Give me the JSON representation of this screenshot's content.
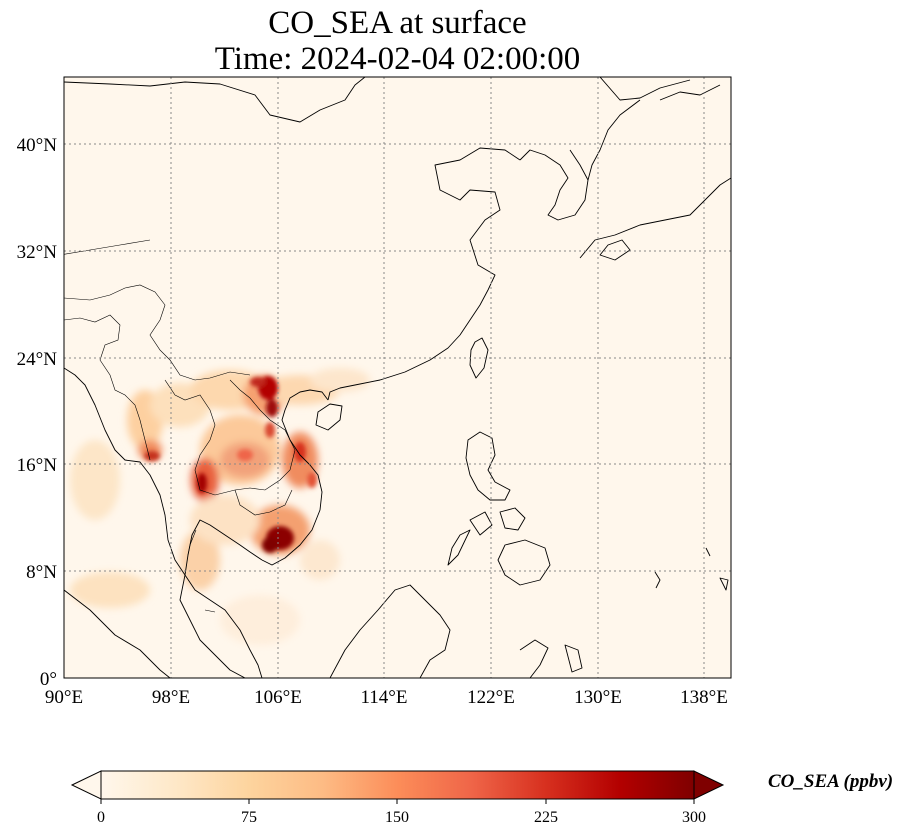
{
  "title": {
    "line1": "CO_SEA at surface",
    "line2": "Time: 2024-02-04 02:00:00"
  },
  "map": {
    "extent": {
      "lon": [
        90,
        140
      ],
      "lat": [
        0,
        45
      ]
    },
    "gridlines": "dotted gray",
    "lon_ticks": [
      {
        "value": 90,
        "label": "90°E"
      },
      {
        "value": 98,
        "label": "98°E"
      },
      {
        "value": 106,
        "label": "106°E"
      },
      {
        "value": 114,
        "label": "114°E"
      },
      {
        "value": 122,
        "label": "122°E"
      },
      {
        "value": 130,
        "label": "130°E"
      },
      {
        "value": 138,
        "label": "138°E"
      }
    ],
    "lat_ticks": [
      {
        "value": 0,
        "label": "0°"
      },
      {
        "value": 8,
        "label": "8°N"
      },
      {
        "value": 16,
        "label": "16°N"
      },
      {
        "value": 24,
        "label": "24°N"
      },
      {
        "value": 32,
        "label": "32°N"
      },
      {
        "value": 40,
        "label": "40°N"
      }
    ]
  },
  "colorbar": {
    "label": "CO_SEA (ppbv)",
    "colormap": "OrRd",
    "range": [
      0,
      300
    ],
    "extend": "both",
    "ticks": [
      "0",
      "75",
      "150",
      "225",
      "300"
    ],
    "tick_values": [
      0,
      75,
      150,
      225,
      300
    ],
    "colors": [
      "#fff7ec",
      "#fee8c8",
      "#fdd49e",
      "#fdbb84",
      "#fc8d59",
      "#ef6548",
      "#d7301f",
      "#b30000",
      "#7f0000"
    ]
  }
}
